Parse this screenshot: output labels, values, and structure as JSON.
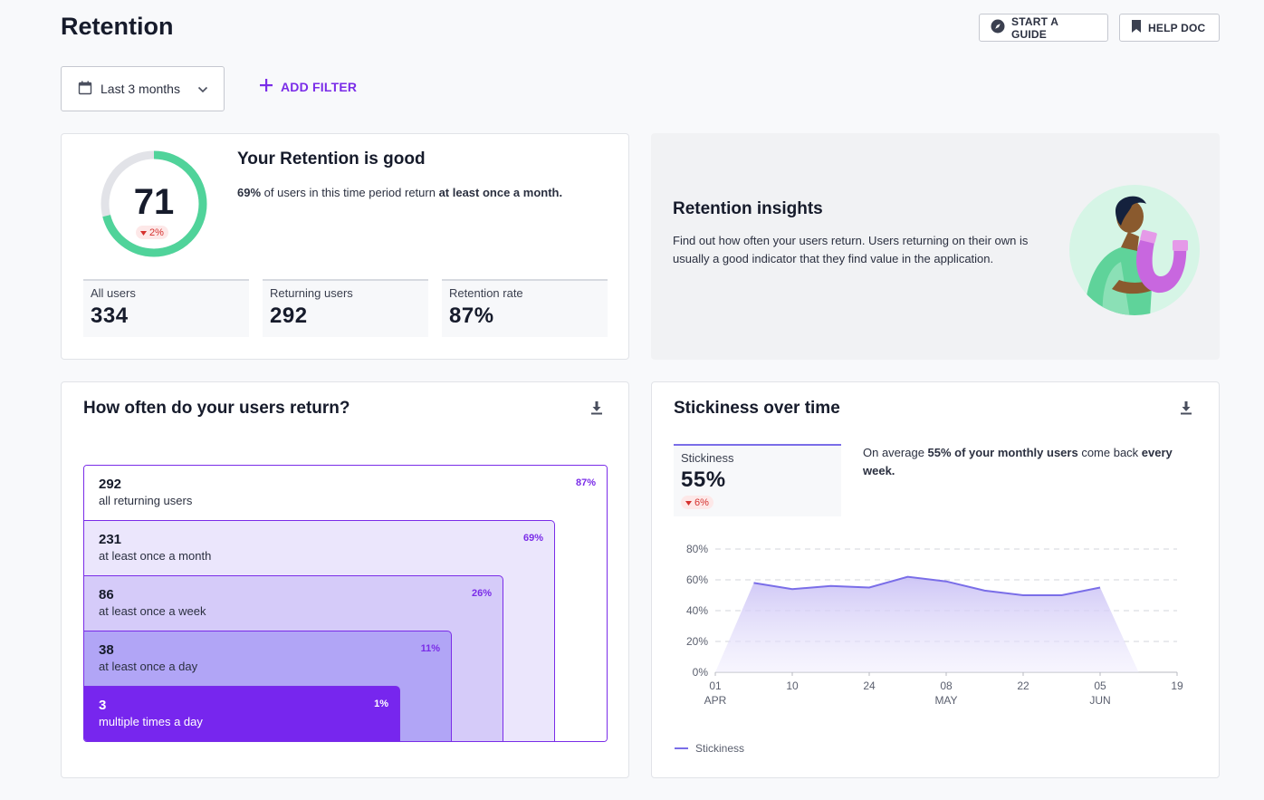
{
  "header": {
    "title": "Retention",
    "guide_label": "START A GUIDE",
    "help_label": "HELP DOC"
  },
  "filters": {
    "date_range": "Last 3 months",
    "add_filter_label": "ADD FILTER"
  },
  "score": {
    "value": "71",
    "value_fraction": 0.71,
    "delta": "2%",
    "title": "Your Retention is good",
    "desc_pct": "69%",
    "desc_mid": " of users in this time period return ",
    "desc_bold": "at least once a month.",
    "kpis": [
      {
        "label": "All users",
        "value": "334"
      },
      {
        "label": "Returning users",
        "value": "292"
      },
      {
        "label": "Retention rate",
        "value": "87%"
      }
    ]
  },
  "insight": {
    "title": "Retention insights",
    "text": "Find out how often your users return. Users returning on their own is usually a good indicator that they find value in the application."
  },
  "frequency": {
    "title": "How often do your users return?",
    "rows": [
      {
        "count": "292",
        "label": "all returning users",
        "pct": "87%"
      },
      {
        "count": "231",
        "label": "at least once a month",
        "pct": "69%"
      },
      {
        "count": "86",
        "label": "at least once a week",
        "pct": "26%"
      },
      {
        "count": "38",
        "label": "at least once a day",
        "pct": "11%"
      },
      {
        "count": "3",
        "label": "multiple times a day",
        "pct": "1%"
      }
    ]
  },
  "stickiness": {
    "title": "Stickiness over time",
    "kpi_label": "Stickiness",
    "kpi_value": "55%",
    "kpi_delta": "6%",
    "desc_a": "On average ",
    "desc_b": "55% of your monthly users",
    "desc_c": " come back ",
    "desc_d": "every week.",
    "legend_label": "Stickiness"
  },
  "colors": {
    "accent": "#7a2ce8",
    "gauge_green": "#50d39a",
    "line": "#7a6ee8"
  },
  "chart_data": {
    "type": "area",
    "y_ticks": [
      "80%",
      "60%",
      "40%",
      "20%",
      "0%"
    ],
    "ylim": [
      0,
      80
    ],
    "x_ticks": [
      {
        "day": "01",
        "month": "APR"
      },
      {
        "day": "10",
        "month": ""
      },
      {
        "day": "24",
        "month": ""
      },
      {
        "day": "08",
        "month": "MAY"
      },
      {
        "day": "22",
        "month": ""
      },
      {
        "day": "05",
        "month": "JUN"
      },
      {
        "day": "19",
        "month": ""
      }
    ],
    "series": [
      {
        "name": "Stickiness",
        "points": [
          [
            0.0,
            0
          ],
          [
            0.5,
            58
          ],
          [
            1.0,
            54
          ],
          [
            1.5,
            56
          ],
          [
            2.0,
            55
          ],
          [
            2.5,
            62
          ],
          [
            3.0,
            59
          ],
          [
            3.5,
            53
          ],
          [
            4.0,
            50
          ],
          [
            4.5,
            50
          ],
          [
            5.0,
            55
          ],
          [
            5.5,
            0
          ]
        ]
      }
    ],
    "grid": true,
    "legend": "bottom-left"
  }
}
